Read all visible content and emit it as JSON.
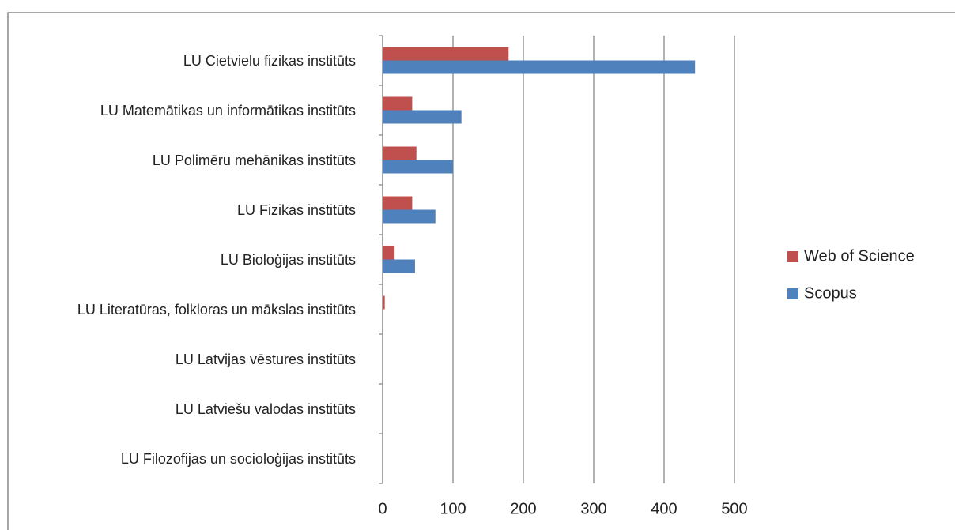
{
  "chart_data": {
    "type": "barh",
    "categories": [
      "LU Cietvielu fizikas institūts",
      "LU Matemātikas un informātikas institūts",
      "LU Polimēru mehānikas institūts",
      "LU Fizikas institūts",
      "LU Bioloģijas institūts",
      "LU Literatūras, folkloras un mākslas institūts",
      "LU Latvijas vēstures institūts",
      "LU Latviešu valodas institūts",
      "LU Filozofijas un socioloģijas institūts"
    ],
    "series": [
      {
        "name": "Web of Science",
        "color": "#c0504d",
        "values": [
          179,
          42,
          48,
          42,
          17,
          3,
          0,
          0,
          0
        ]
      },
      {
        "name": "Scopus",
        "color": "#4f81bd",
        "values": [
          444,
          112,
          100,
          75,
          46,
          0,
          0,
          0,
          0
        ]
      }
    ],
    "xlim": [
      0,
      500
    ],
    "xticks": [
      0,
      100,
      200,
      300,
      400,
      500
    ],
    "grid": true,
    "legend": "right"
  }
}
